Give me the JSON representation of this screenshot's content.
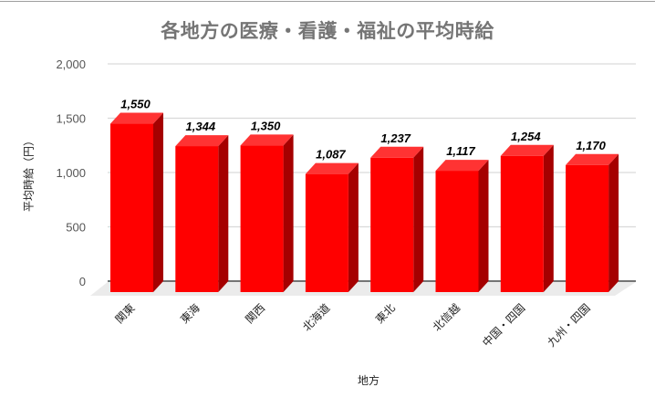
{
  "chart_data": {
    "type": "bar",
    "style": "3d-column",
    "title": "各地方の医療・看護・福祉の平均時給",
    "xlabel": "地方",
    "ylabel": "平均時給（円）",
    "categories": [
      "関東",
      "東海",
      "関西",
      "北海道",
      "東北",
      "北信越",
      "中国・四国",
      "九州・四国"
    ],
    "values": [
      1550,
      1344,
      1350,
      1087,
      1237,
      1117,
      1254,
      1170
    ],
    "value_labels": [
      "1,550",
      "1,344",
      "1,350",
      "1,087",
      "1,237",
      "1,117",
      "1,254",
      "1,170"
    ],
    "ylim": [
      0,
      2000
    ],
    "yticks": [
      0,
      500,
      1000,
      1500,
      2000
    ],
    "ytick_labels": [
      "0",
      "500",
      "1,000",
      "1,500",
      "2,000"
    ],
    "grid": true,
    "legend": "none",
    "colors": {
      "bar_front": "#ff0000",
      "bar_top": "#ff3333",
      "bar_side": "#a50000",
      "grid": "#d9d9d9",
      "floor": "#ebebeb",
      "title": "#757575"
    }
  }
}
